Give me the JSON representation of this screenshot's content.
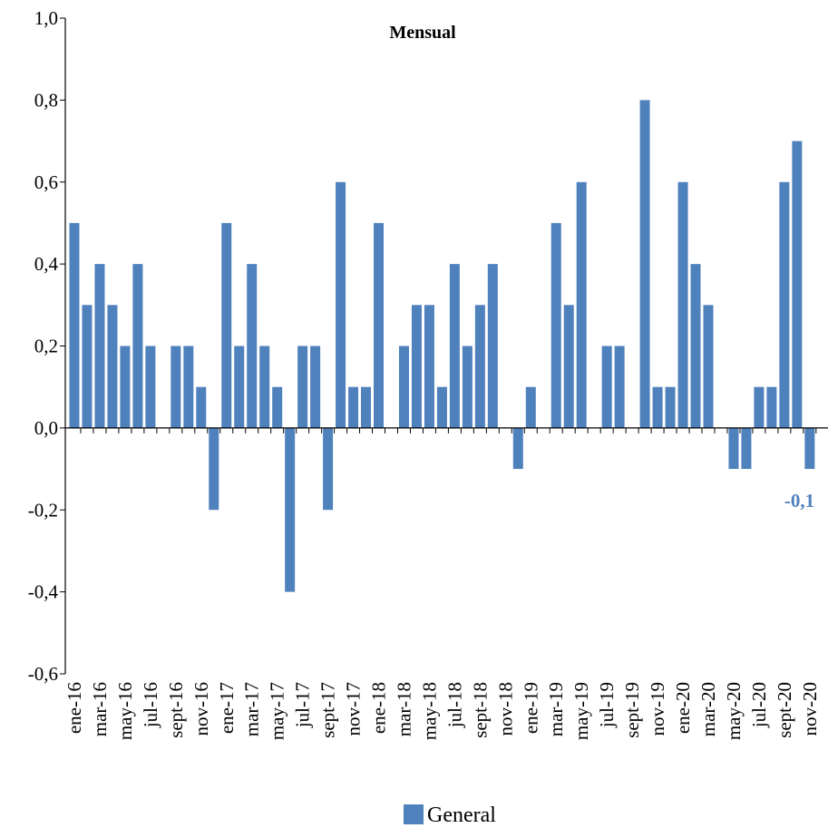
{
  "chart_data": {
    "type": "bar",
    "title": "Mensual",
    "categories": [
      "ene-16",
      null,
      "mar-16",
      null,
      "may-16",
      null,
      "jul-16",
      null,
      "sept-16",
      null,
      "nov-16",
      null,
      "ene-17",
      null,
      "mar-17",
      null,
      "may-17",
      null,
      "jul-17",
      null,
      "sept-17",
      null,
      "nov-17",
      null,
      "ene-18",
      null,
      "mar-18",
      null,
      "may-18",
      null,
      "jul-18",
      null,
      "sept-18",
      null,
      "nov-18",
      null,
      "ene-19",
      null,
      "mar-19",
      null,
      "may-19",
      null,
      "jul-19",
      null,
      "sept-19",
      null,
      "nov-19",
      null,
      "ene-20",
      null,
      "mar-20",
      null,
      "may-20",
      null,
      "jul-20",
      null,
      "sept-20",
      null,
      "nov-20"
    ],
    "series": [
      {
        "name": "General",
        "color": "#4f81bd",
        "values": [
          0.5,
          0.3,
          0.4,
          0.3,
          0.2,
          0.4,
          0.2,
          0.0,
          0.2,
          0.2,
          0.1,
          -0.2,
          0.5,
          0.2,
          0.4,
          0.2,
          0.1,
          -0.4,
          0.2,
          0.2,
          -0.2,
          0.6,
          0.1,
          0.1,
          0.5,
          0.0,
          0.2,
          0.3,
          0.3,
          0.1,
          0.4,
          0.2,
          0.3,
          0.4,
          0.0,
          -0.1,
          0.1,
          0.0,
          0.5,
          0.3,
          0.6,
          0.0,
          0.2,
          0.2,
          0.0,
          0.8,
          0.1,
          0.1,
          0.6,
          0.4,
          0.3,
          0.0,
          -0.1,
          -0.1,
          0.1,
          0.1,
          0.6,
          0.7,
          -0.1
        ],
        "value_labels": [
          null,
          null,
          null,
          null,
          null,
          null,
          null,
          null,
          null,
          null,
          null,
          null,
          null,
          null,
          null,
          null,
          null,
          null,
          null,
          null,
          null,
          null,
          null,
          null,
          null,
          null,
          null,
          null,
          null,
          null,
          null,
          null,
          null,
          null,
          null,
          null,
          null,
          null,
          null,
          null,
          null,
          null,
          null,
          null,
          null,
          null,
          null,
          null,
          null,
          null,
          null,
          null,
          null,
          null,
          null,
          null,
          null,
          null,
          "-0,1"
        ]
      }
    ],
    "ylim": [
      -0.6,
      1.0
    ],
    "yticks": [
      {
        "value": -0.6,
        "label": "-0,6"
      },
      {
        "value": -0.4,
        "label": "-0,4"
      },
      {
        "value": -0.2,
        "label": "-0,2"
      },
      {
        "value": 0.0,
        "label": "0,0"
      },
      {
        "value": 0.2,
        "label": "0,2"
      },
      {
        "value": 0.4,
        "label": "0,4"
      },
      {
        "value": 0.6,
        "label": "0,6"
      },
      {
        "value": 0.8,
        "label": "0,8"
      },
      {
        "value": 1.0,
        "label": "1,0"
      }
    ],
    "legend": "bottom"
  }
}
